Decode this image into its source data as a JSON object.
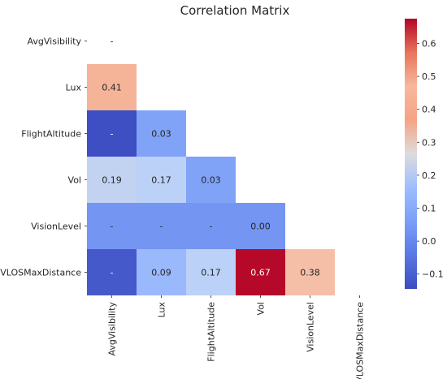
{
  "chart_data": {
    "type": "heatmap",
    "title": "Correlation Matrix",
    "rows": [
      "AvgVisibility",
      "Lux",
      "FlightAltitude",
      "Vol",
      "VisionLevel",
      "VLOSMaxDistance"
    ],
    "cols": [
      "AvgVisibility",
      "Lux",
      "FlightAltitude",
      "Vol",
      "VisionLevel",
      "VLOSMaxDistance"
    ],
    "mask": "upper-triangle-including-diagonal",
    "cells": [
      {
        "row": 0,
        "col": 0,
        "label": "-",
        "value": null
      },
      {
        "row": 1,
        "col": 0,
        "label": "0.41",
        "value": 0.41
      },
      {
        "row": 2,
        "col": 0,
        "label": "-",
        "value": -0.14
      },
      {
        "row": 2,
        "col": 1,
        "label": "0.03",
        "value": 0.03
      },
      {
        "row": 3,
        "col": 0,
        "label": "0.19",
        "value": 0.19
      },
      {
        "row": 3,
        "col": 1,
        "label": "0.17",
        "value": 0.17
      },
      {
        "row": 3,
        "col": 2,
        "label": "0.03",
        "value": 0.03
      },
      {
        "row": 4,
        "col": 0,
        "label": "-",
        "value": 0.0
      },
      {
        "row": 4,
        "col": 1,
        "label": "-",
        "value": 0.0
      },
      {
        "row": 4,
        "col": 2,
        "label": "-",
        "value": 0.0
      },
      {
        "row": 4,
        "col": 3,
        "label": "0.00",
        "value": 0.0
      },
      {
        "row": 5,
        "col": 0,
        "label": "-",
        "value": -0.12
      },
      {
        "row": 5,
        "col": 1,
        "label": "0.09",
        "value": 0.09
      },
      {
        "row": 5,
        "col": 2,
        "label": "0.17",
        "value": 0.17
      },
      {
        "row": 5,
        "col": 3,
        "label": "0.67",
        "value": 0.67
      },
      {
        "row": 5,
        "col": 4,
        "label": "0.38",
        "value": 0.38
      }
    ],
    "colorbar": {
      "colormap": "coolwarm",
      "vmin": -0.145,
      "vmax": 0.675,
      "ticks": [
        -0.1,
        0.0,
        0.1,
        0.2,
        0.3,
        0.4,
        0.5,
        0.6
      ],
      "tick_labels": [
        "−0.1",
        "0.0",
        "0.1",
        "0.2",
        "0.3",
        "0.4",
        "0.5",
        "0.6"
      ]
    },
    "grid": false,
    "legend": "colorbar-right"
  }
}
